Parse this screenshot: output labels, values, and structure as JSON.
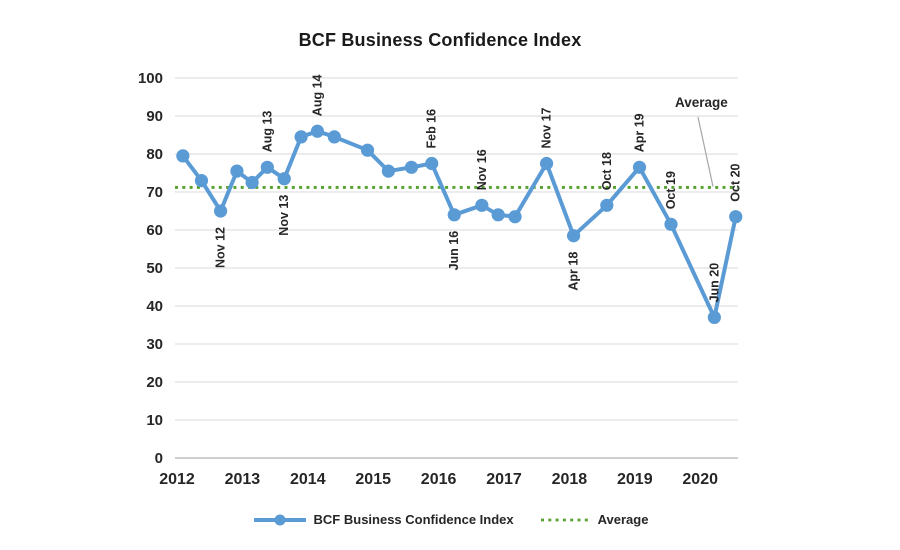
{
  "chart_data": {
    "type": "line",
    "title": "BCF Business Confidence Index",
    "y_axis": {
      "min": 0,
      "max": 100,
      "step": 10,
      "tick_labels": [
        "0",
        "10",
        "20",
        "30",
        "40",
        "50",
        "60",
        "70",
        "80",
        "90",
        "100"
      ]
    },
    "x_axis": {
      "tick_labels": [
        "2012",
        "2013",
        "2014",
        "2015",
        "2016",
        "2017",
        "2018",
        "2019",
        "2020"
      ]
    },
    "series": [
      {
        "name": "BCF Business Confidence Index",
        "color": "#5B9BD5",
        "points": [
          {
            "x_frac": 0.014,
            "value": 79.5
          },
          {
            "x_frac": 0.047,
            "value": 73
          },
          {
            "x_frac": 0.081,
            "value": 65,
            "label": "Nov 12",
            "label_pos": "below"
          },
          {
            "x_frac": 0.11,
            "value": 75.5
          },
          {
            "x_frac": 0.137,
            "value": 72.5
          },
          {
            "x_frac": 0.164,
            "value": 76.5,
            "label": "Aug 13",
            "label_pos": "above"
          },
          {
            "x_frac": 0.194,
            "value": 73.5,
            "label": "Nov 13",
            "label_pos": "below"
          },
          {
            "x_frac": 0.224,
            "value": 84.5
          },
          {
            "x_frac": 0.253,
            "value": 86,
            "label": "Aug 14",
            "label_pos": "above"
          },
          {
            "x_frac": 0.283,
            "value": 84.5
          },
          {
            "x_frac": 0.342,
            "value": 81
          },
          {
            "x_frac": 0.379,
            "value": 75.5
          },
          {
            "x_frac": 0.42,
            "value": 76.5
          },
          {
            "x_frac": 0.456,
            "value": 77.5,
            "label": "Feb 16",
            "label_pos": "above"
          },
          {
            "x_frac": 0.496,
            "value": 64,
            "label": "Jun 16",
            "label_pos": "below"
          },
          {
            "x_frac": 0.545,
            "value": 66.5,
            "label": "Nov 16",
            "label_pos": "above"
          },
          {
            "x_frac": 0.574,
            "value": 64
          },
          {
            "x_frac": 0.604,
            "value": 63.5
          },
          {
            "x_frac": 0.66,
            "value": 77.5,
            "label": "Nov 17",
            "label_pos": "above"
          },
          {
            "x_frac": 0.708,
            "value": 58.5,
            "label": "Apr 18",
            "label_pos": "below"
          },
          {
            "x_frac": 0.767,
            "value": 66.5,
            "label": "Oct 18",
            "label_pos": "above"
          },
          {
            "x_frac": 0.825,
            "value": 76.5,
            "label": "Apr 19",
            "label_pos": "above"
          },
          {
            "x_frac": 0.881,
            "value": 61.5,
            "label": "Oct 19",
            "label_pos": "above"
          },
          {
            "x_frac": 0.958,
            "value": 37,
            "label": "Jun 20",
            "label_pos": "above"
          },
          {
            "x_frac": 0.996,
            "value": 63.5,
            "label": "Oct 20",
            "label_pos": "above"
          }
        ]
      }
    ],
    "average_line": {
      "name": "Average",
      "value": 71.2,
      "color": "#55A32E",
      "style": "dotted"
    },
    "annotation": {
      "text": "Average"
    },
    "legend": {
      "position": "bottom",
      "items": [
        {
          "label": "BCF Business Confidence Index",
          "swatch": "line-with-marker",
          "color": "#5B9BD5"
        },
        {
          "label": "Average",
          "swatch": "dotted-line",
          "color": "#55A32E"
        }
      ]
    },
    "grid": {
      "horizontal": true,
      "vertical": false,
      "color": "#D9D9D9"
    }
  }
}
